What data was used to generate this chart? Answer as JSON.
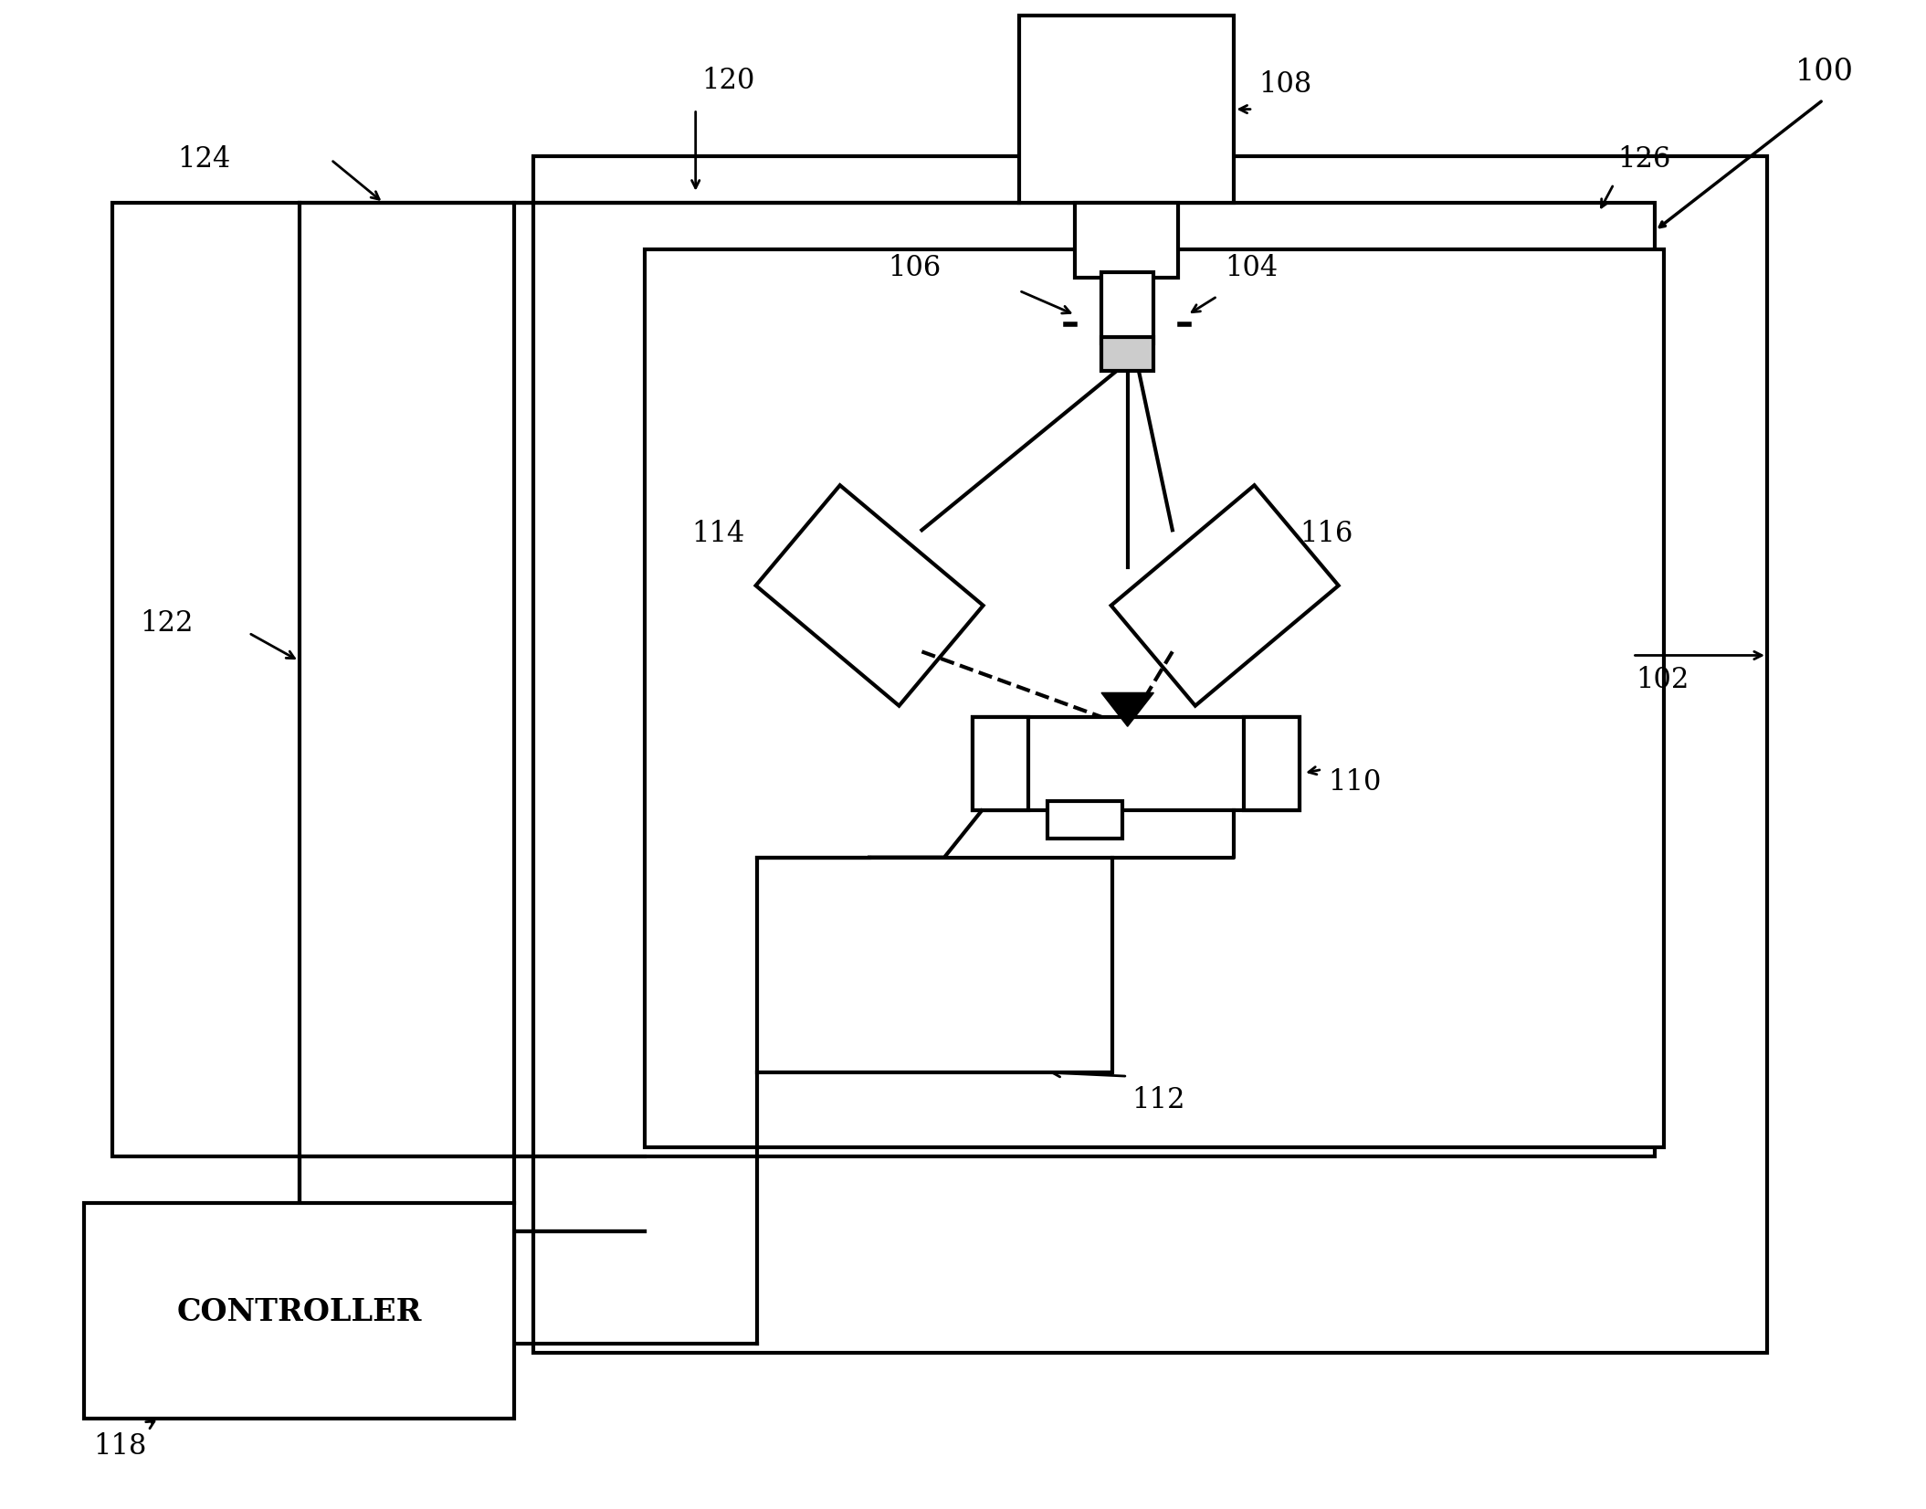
{
  "background_color": "#ffffff",
  "line_color": "#000000",
  "lw": 3.0,
  "figsize": [
    21.09,
    16.52
  ],
  "dpi": 100,
  "font_size": 22,
  "serif_font": "DejaVu Serif"
}
